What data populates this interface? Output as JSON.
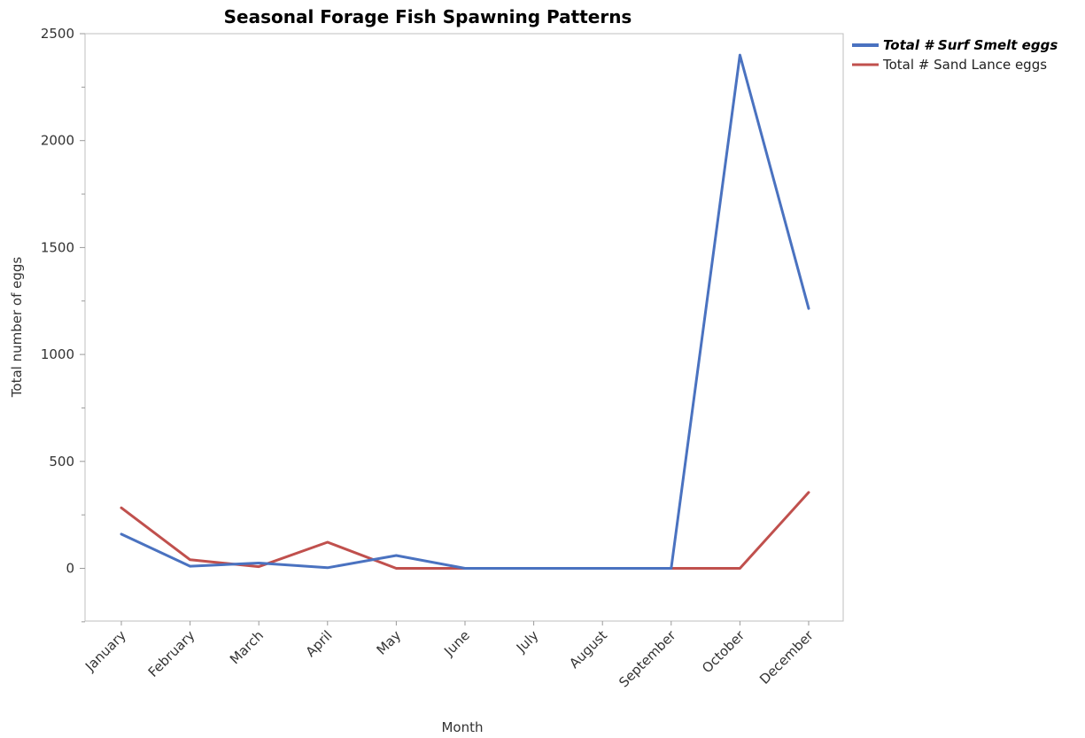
{
  "chart_data": {
    "type": "line",
    "title": "Seasonal Forage Fish Spawning Patterns",
    "xlabel": "Month",
    "ylabel": "Total number of eggs",
    "categories": [
      "January",
      "February",
      "March",
      "April",
      "May",
      "June",
      "July",
      "August",
      "September",
      "October",
      "December"
    ],
    "y_ticks": [
      "0",
      "500",
      "1000",
      "1500",
      "2000",
      "2500"
    ],
    "ylim": [
      -250,
      2500
    ],
    "grid": false,
    "legend_position": "top-right",
    "series": [
      {
        "name": "Total # Surf Smelt eggs",
        "color": "#4a72c0",
        "bold": true,
        "values": [
          160,
          10,
          25,
          3,
          60,
          0,
          0,
          0,
          0,
          2400,
          1215
        ]
      },
      {
        "name": "Total # Sand Lance eggs",
        "color": "#c0504d",
        "bold": false,
        "values": [
          283,
          40,
          8,
          122,
          0,
          0,
          0,
          0,
          0,
          0,
          355
        ]
      }
    ]
  }
}
